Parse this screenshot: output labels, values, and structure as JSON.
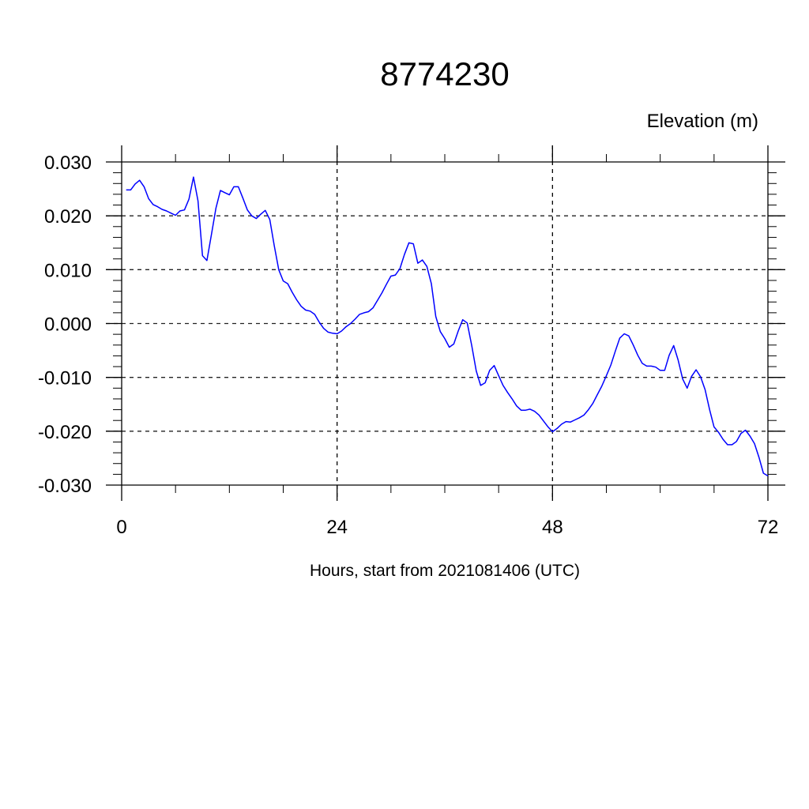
{
  "chart_data": {
    "type": "line",
    "title": "8774230",
    "ylabel": "Elevation (m)",
    "xlabel": "Hours, start from 2021081406 (UTC)",
    "xlim": [
      0,
      72
    ],
    "ylim": [
      -0.03,
      0.03
    ],
    "xticks": [
      0,
      24,
      48,
      72
    ],
    "xtick_labels": [
      "0",
      "24",
      "48",
      "72"
    ],
    "yticks": [
      0.03,
      0.02,
      0.01,
      0.0,
      -0.01,
      -0.02,
      -0.03
    ],
    "ytick_labels": [
      "0.030",
      "0.020",
      "0.010",
      "0.000",
      "-0.010",
      "-0.020",
      "-0.030"
    ],
    "x_minor_step": 6,
    "y_minor_step": 0.002,
    "grid": true,
    "series": [
      {
        "name": "Elevation",
        "color": "#0000ff",
        "x_start": 0.5,
        "x_step": 0.5,
        "values": [
          0.0248,
          0.0248,
          0.0259,
          0.0266,
          0.0254,
          0.0232,
          0.0221,
          0.0217,
          0.0212,
          0.0209,
          0.0205,
          0.0201,
          0.0209,
          0.0211,
          0.0231,
          0.0272,
          0.0228,
          0.0126,
          0.0117,
          0.0165,
          0.0214,
          0.0247,
          0.0243,
          0.0239,
          0.0254,
          0.0254,
          0.0233,
          0.0211,
          0.02,
          0.0195,
          0.0203,
          0.021,
          0.0193,
          0.0145,
          0.01,
          0.0079,
          0.0074,
          0.0058,
          0.0044,
          0.0032,
          0.0025,
          0.0023,
          0.0017,
          0.0003,
          -0.0009,
          -0.0016,
          -0.0018,
          -0.0019,
          -0.0014,
          -0.0006,
          0.0,
          0.0008,
          0.0017,
          0.002,
          0.0022,
          0.0029,
          0.0043,
          0.0057,
          0.0073,
          0.0088,
          0.009,
          0.0102,
          0.0128,
          0.015,
          0.0148,
          0.0112,
          0.0118,
          0.0106,
          0.0074,
          0.0013,
          -0.0015,
          -0.0028,
          -0.0044,
          -0.0038,
          -0.0014,
          0.0007,
          0.0001,
          -0.0041,
          -0.0088,
          -0.0115,
          -0.011,
          -0.0087,
          -0.0078,
          -0.0097,
          -0.0115,
          -0.0128,
          -0.014,
          -0.0153,
          -0.0161,
          -0.0161,
          -0.0159,
          -0.0163,
          -0.017,
          -0.0181,
          -0.0192,
          -0.0201,
          -0.0195,
          -0.0187,
          -0.0182,
          -0.0183,
          -0.0179,
          -0.0175,
          -0.017,
          -0.016,
          -0.0148,
          -0.0132,
          -0.0116,
          -0.0097,
          -0.0077,
          -0.0051,
          -0.0027,
          -0.0019,
          -0.0023,
          -0.004,
          -0.0059,
          -0.0074,
          -0.0079,
          -0.0079,
          -0.0081,
          -0.0087,
          -0.0087,
          -0.0059,
          -0.0041,
          -0.0068,
          -0.0103,
          -0.012,
          -0.0098,
          -0.0086,
          -0.0099,
          -0.0123,
          -0.016,
          -0.0192,
          -0.0202,
          -0.0215,
          -0.0225,
          -0.0225,
          -0.0219,
          -0.0204,
          -0.0198,
          -0.0209,
          -0.0223,
          -0.0248,
          -0.0278,
          -0.0283
        ]
      }
    ]
  }
}
